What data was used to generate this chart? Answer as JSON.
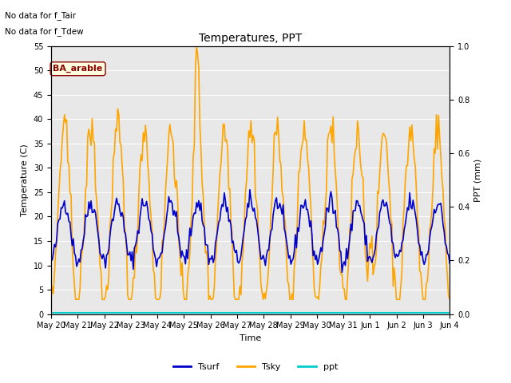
{
  "title": "Temperatures, PPT",
  "xlabel": "Time",
  "ylabel_left": "Temperature (C)",
  "ylabel_right": "PPT (mm)",
  "annotation_line1": "No data for f_Tair",
  "annotation_line2": "No data for f_Tdew",
  "station_label": "BA_arable",
  "ylim_left": [
    0,
    55
  ],
  "ylim_right": [
    0,
    1.0
  ],
  "yticks_left": [
    0,
    5,
    10,
    15,
    20,
    25,
    30,
    35,
    40,
    45,
    50,
    55
  ],
  "yticks_right": [
    0.0,
    0.2,
    0.4,
    0.6,
    0.8,
    1.0
  ],
  "xtick_labels": [
    "May 20",
    "May 21",
    "May 22",
    "May 23",
    "May 24",
    "May 25",
    "May 26",
    "May 27",
    "May 28",
    "May 29",
    "May 30",
    "May 31",
    "Jun 1",
    "Jun 2",
    "Jun 3",
    "Jun 4"
  ],
  "color_tsurf": "#0000cc",
  "color_tsky": "#ffa500",
  "color_ppt": "#00cccc",
  "legend_entries": [
    "Tsurf",
    "Tsky",
    "ppt"
  ],
  "fig_facecolor": "#ffffff",
  "plot_facecolor": "#e8e8e8",
  "linewidth_tsurf": 1.2,
  "linewidth_tsky": 1.2,
  "linewidth_ppt": 1.5,
  "figsize": [
    6.4,
    4.8
  ],
  "dpi": 100
}
